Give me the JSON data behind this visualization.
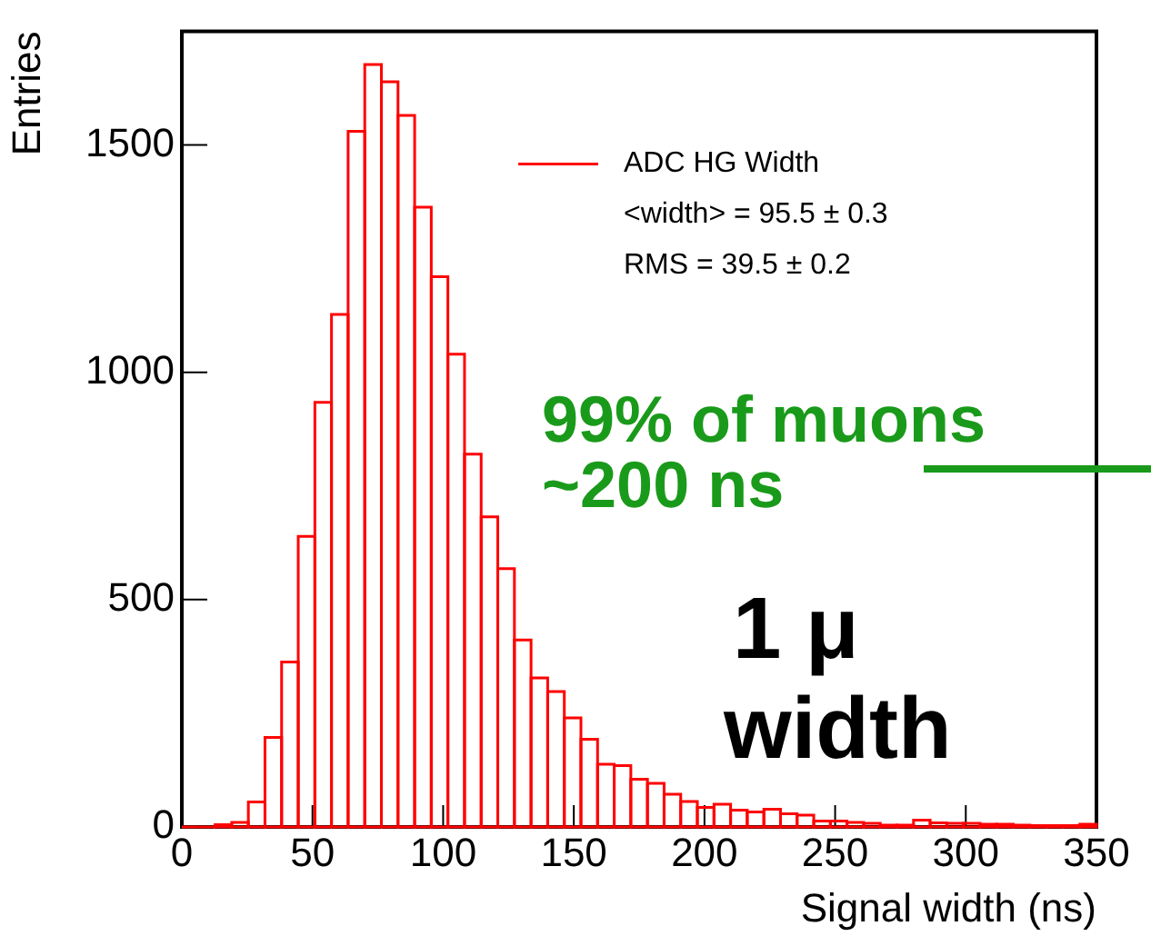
{
  "chart_data": {
    "type": "histogram",
    "xlabel": "Signal width (ns)",
    "ylabel": "Entries",
    "bins": [
      0,
      6.36,
      12.73,
      19.09,
      25.45,
      31.82,
      38.18,
      44.55,
      50.91,
      57.27,
      63.64,
      70,
      76.36,
      82.73,
      89.09,
      95.45,
      101.82,
      108.18,
      114.55,
      120.91,
      127.27,
      133.64,
      140,
      146.36,
      152.73,
      159.09,
      165.45,
      171.82,
      178.18,
      184.55,
      190.91,
      197.27,
      203.64,
      210,
      216.36,
      222.73,
      229.09,
      235.45,
      241.82,
      248.18,
      254.55,
      260.91,
      267.27,
      273.64,
      280,
      286.36,
      292.73,
      299.09,
      305.45,
      311.82,
      318.18,
      324.55,
      330.91,
      337.27,
      343.64,
      350
    ],
    "series": [
      {
        "name": "ADC HG Width",
        "color": "#ff0000",
        "values": [
          0,
          0,
          5,
          10,
          55,
          197,
          363,
          639,
          934,
          1127,
          1530,
          1677,
          1639,
          1565,
          1363,
          1210,
          1040,
          820,
          682,
          568,
          411,
          328,
          298,
          240,
          193,
          138,
          135,
          105,
          96,
          72,
          56,
          43,
          50,
          37,
          33,
          39,
          29,
          26,
          13,
          13,
          10,
          8,
          4,
          4,
          15,
          9,
          8,
          8,
          6,
          6,
          4,
          3,
          3,
          3,
          6
        ]
      }
    ],
    "xlim": [
      0,
      350
    ],
    "xticks": [
      0,
      50,
      100,
      150,
      200,
      250,
      300,
      350
    ],
    "ylim": [
      0,
      1750
    ],
    "yticks": [
      0,
      500,
      1000,
      1500
    ],
    "legend": "top right",
    "annotations": [
      "<width> = 95.5 ± 0.3",
      "RMS = 39.5 ± 0.2",
      "99% of muons",
      "~200 ns",
      "1 μ",
      "width"
    ]
  }
}
